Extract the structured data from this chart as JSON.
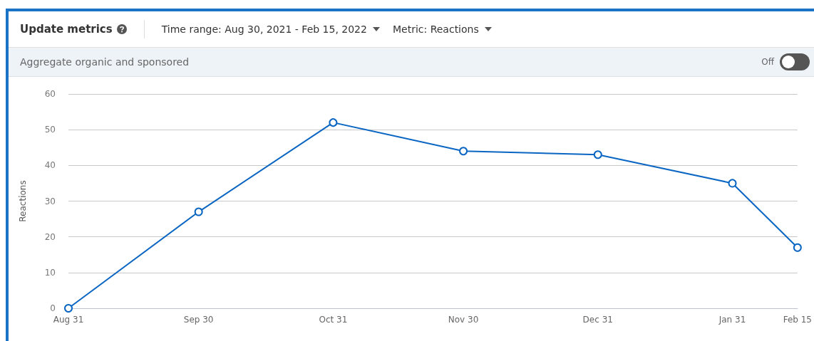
{
  "chart_data": {
    "type": "line",
    "title": "Update metrics",
    "annotations": [
      "Time range: Aug 30, 2021 - Feb 15, 2022",
      "Metric: Reactions",
      "Aggregate organic and sponsored",
      "Off"
    ],
    "ylabel": "Reactions",
    "x": [
      "2021-08-31",
      "2021-09-30",
      "2021-10-31",
      "2021-11-30",
      "2021-12-31",
      "2022-01-31",
      "2022-02-15"
    ],
    "series": [
      {
        "color": "#0a66c2",
        "values": [
          0,
          27,
          52,
          44,
          43,
          35,
          17
        ]
      }
    ],
    "xlim": [
      "2021-08-31",
      "2022-02-15"
    ],
    "xticks": [
      {
        "value": "2021-08-31",
        "label": "Aug 31"
      },
      {
        "value": "2021-09-30",
        "label": "Sep 30"
      },
      {
        "value": "2021-10-31",
        "label": "Oct 31"
      },
      {
        "value": "2021-11-30",
        "label": "Nov 30"
      },
      {
        "value": "2021-12-31",
        "label": "Dec 31"
      },
      {
        "value": "2022-01-31",
        "label": "Jan 31"
      },
      {
        "value": "2022-02-15",
        "label": "Feb 15"
      }
    ],
    "ylim": [
      0,
      60
    ],
    "yticks": [
      0,
      10,
      20,
      30,
      40,
      50,
      60
    ],
    "grid": "y",
    "marker": "circle",
    "line_style": "solid"
  }
}
